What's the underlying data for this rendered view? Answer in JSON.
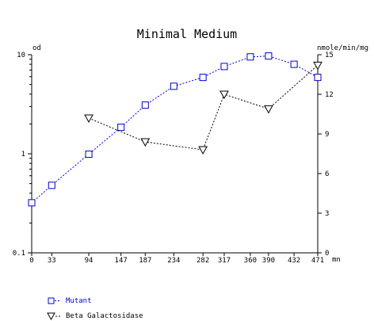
{
  "chart_data": {
    "type": "line",
    "title": "Minimal Medium",
    "left_axis_unit": "od",
    "right_axis_unit": "nmole/min/mg",
    "x_unit": "mn",
    "x_ticks": [
      0,
      33,
      94,
      147,
      187,
      234,
      282,
      317,
      360,
      390,
      432,
      471
    ],
    "xlim": [
      0,
      471
    ],
    "y_left": {
      "scale": "log",
      "range": [
        0.1,
        10
      ],
      "ticks": [
        0.1,
        1,
        10
      ],
      "tick_labels": [
        "0.1",
        "1",
        "10"
      ]
    },
    "y_right": {
      "scale": "linear",
      "range": [
        0,
        15
      ],
      "ticks": [
        0,
        3,
        6,
        9,
        12,
        15
      ]
    },
    "grid": false,
    "legend_position": "bottom-left",
    "series": [
      {
        "name": "Mutant",
        "axis": "left",
        "marker": "square",
        "color": "#0000cc",
        "x": [
          0,
          33,
          94,
          147,
          187,
          234,
          282,
          317,
          360,
          390,
          432,
          471
        ],
        "y": [
          0.32,
          0.48,
          0.99,
          1.85,
          3.1,
          4.8,
          5.9,
          7.6,
          9.5,
          9.7,
          8.0,
          5.9
        ]
      },
      {
        "name": "Beta Galactosidase",
        "axis": "right",
        "marker": "triangle-down",
        "color": "#000000",
        "x": [
          94,
          187,
          282,
          317,
          390,
          471
        ],
        "y": [
          10.2,
          8.4,
          7.8,
          12.0,
          10.9,
          14.2
        ]
      }
    ]
  }
}
